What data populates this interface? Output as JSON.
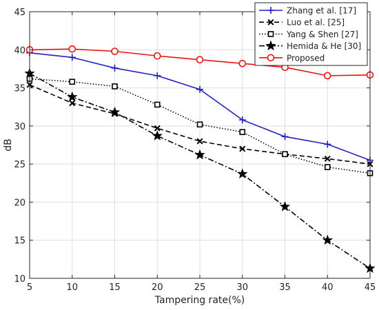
{
  "chart_data": {
    "type": "line",
    "xlabel": "Tampering rate(%)",
    "ylabel": "dB",
    "x": [
      5,
      10,
      15,
      20,
      25,
      30,
      35,
      40,
      45
    ],
    "xlim": [
      5,
      45
    ],
    "ylim": [
      10,
      45
    ],
    "xticks": [
      5,
      10,
      15,
      20,
      25,
      30,
      35,
      40,
      45
    ],
    "yticks": [
      10,
      15,
      20,
      25,
      30,
      35,
      40,
      45
    ],
    "grid": true,
    "legend_position": "top-right",
    "series": [
      {
        "name": "Zhang et al. [17]",
        "color": "#1f1fbf",
        "dash": "solid",
        "marker": "plus",
        "values": [
          39.6,
          39.0,
          37.6,
          36.6,
          34.8,
          30.8,
          28.6,
          27.6,
          25.5
        ]
      },
      {
        "name": "Luo et al. [25]",
        "color": "#000000",
        "dash": "dashed",
        "marker": "x",
        "values": [
          35.4,
          33.0,
          31.6,
          29.7,
          28.0,
          27.0,
          26.3,
          25.7,
          25.0
        ]
      },
      {
        "name": "Yang & Shen [27]",
        "color": "#000000",
        "dash": "dotted",
        "marker": "square",
        "values": [
          36.2,
          35.8,
          35.2,
          32.8,
          30.2,
          29.2,
          26.3,
          24.6,
          23.8
        ]
      },
      {
        "name": "Hemida & He [30]",
        "color": "#000000",
        "dash": "dashdot",
        "marker": "star",
        "values": [
          36.9,
          33.8,
          31.8,
          28.7,
          26.2,
          23.7,
          19.4,
          15.0,
          11.3
        ]
      },
      {
        "name": "Proposed",
        "color": "#e8130e",
        "dash": "solid",
        "marker": "circle",
        "values": [
          40.0,
          40.1,
          39.8,
          39.2,
          38.7,
          38.2,
          37.7,
          36.6,
          36.7
        ]
      }
    ]
  }
}
